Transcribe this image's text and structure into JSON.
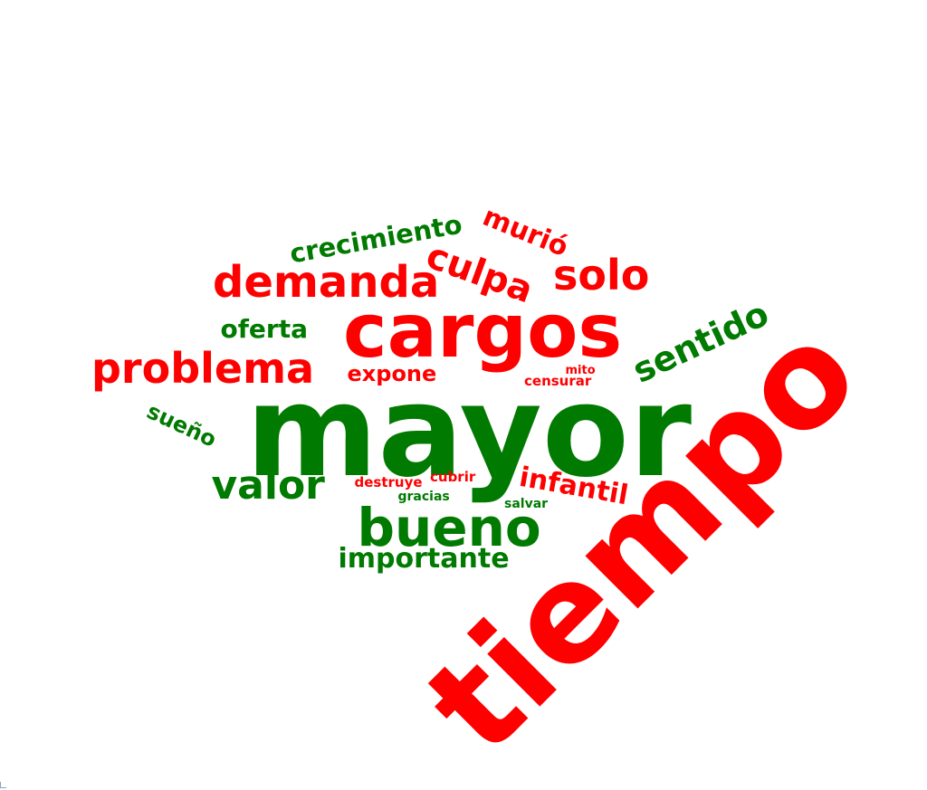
{
  "colors": {
    "positive": "#007a00",
    "negative": "#ff0000",
    "background": "#ffffff"
  },
  "words": [
    {
      "text": "tiempo",
      "sentiment": "negative"
    },
    {
      "text": "mayor",
      "sentiment": "positive"
    },
    {
      "text": "cargos",
      "sentiment": "negative"
    },
    {
      "text": "bueno",
      "sentiment": "positive"
    },
    {
      "text": "problema",
      "sentiment": "negative"
    },
    {
      "text": "demanda",
      "sentiment": "negative"
    },
    {
      "text": "sentido",
      "sentiment": "positive"
    },
    {
      "text": "culpa",
      "sentiment": "negative"
    },
    {
      "text": "solo",
      "sentiment": "negative"
    },
    {
      "text": "valor",
      "sentiment": "positive"
    },
    {
      "text": "crecimiento",
      "sentiment": "positive"
    },
    {
      "text": "importante",
      "sentiment": "positive"
    },
    {
      "text": "murió",
      "sentiment": "negative"
    },
    {
      "text": "oferta",
      "sentiment": "positive"
    },
    {
      "text": "expone",
      "sentiment": "negative"
    },
    {
      "text": "infantil",
      "sentiment": "negative"
    },
    {
      "text": "sueño",
      "sentiment": "positive"
    },
    {
      "text": "destruye",
      "sentiment": "negative"
    },
    {
      "text": "cubrir",
      "sentiment": "negative"
    },
    {
      "text": "gracias",
      "sentiment": "positive"
    },
    {
      "text": "salvar",
      "sentiment": "positive"
    },
    {
      "text": "censurar",
      "sentiment": "negative"
    },
    {
      "text": "mito",
      "sentiment": "negative"
    }
  ]
}
